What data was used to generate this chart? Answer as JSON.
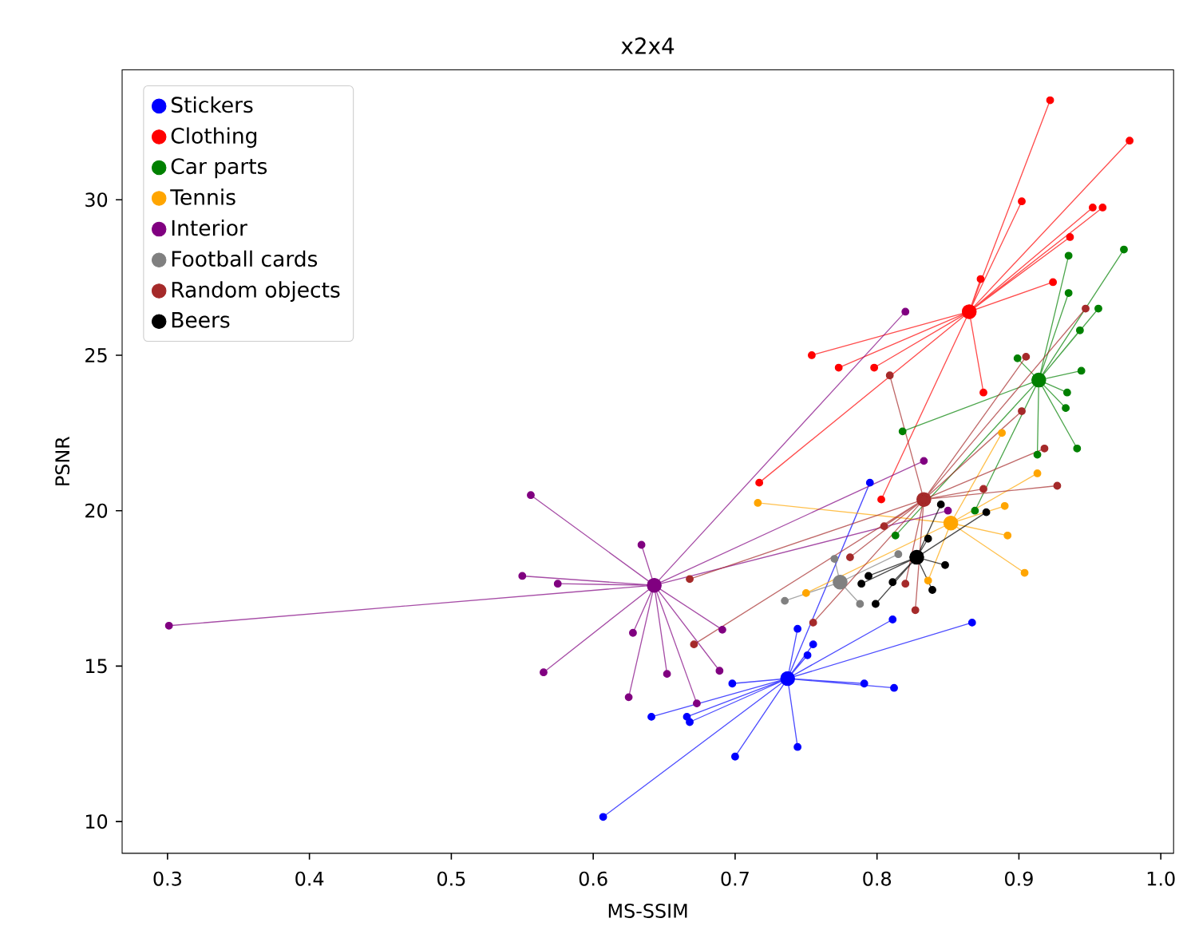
{
  "chart_data": {
    "type": "scatter",
    "title": "x2x4",
    "xlabel": "MS-SSIM",
    "ylabel": "PSNR",
    "xlim": [
      0.268,
      1.009
    ],
    "ylim": [
      8.98,
      34.18
    ],
    "xticks": [
      0.3,
      0.4,
      0.5,
      0.6,
      0.7,
      0.8,
      0.9,
      {
        "value": 1.0,
        "label": "1.0"
      }
    ],
    "yticks": [
      10,
      15,
      20,
      25,
      30
    ],
    "legend": "top left",
    "marker": "circle",
    "series": [
      {
        "name": "Stickers",
        "color": "#0000ff",
        "x": [
          0.737
        ],
        "values": [
          14.6
        ]
      },
      {
        "type": "line",
        "color": "#0000ff",
        "x": [
          0.737,
          0.607,
          0.737,
          0.7,
          0.737,
          0.744,
          0.737,
          0.641,
          0.737,
          0.666,
          0.737,
          0.668,
          0.737,
          0.698,
          0.737,
          0.791,
          0.737,
          0.812,
          0.737,
          0.744,
          0.737,
          0.755,
          0.737,
          0.751,
          0.737,
          0.811,
          0.737,
          0.867,
          0.737,
          0.795
        ],
        "values": [
          14.6,
          10.15,
          14.6,
          12.09,
          14.6,
          12.4,
          14.6,
          13.37,
          14.6,
          13.37,
          14.6,
          13.2,
          14.6,
          14.44,
          14.6,
          14.44,
          14.6,
          14.3,
          14.6,
          16.2,
          14.6,
          15.7,
          14.6,
          15.35,
          14.6,
          16.5,
          14.6,
          16.4,
          14.6,
          20.9
        ]
      },
      {
        "name": "Clothing",
        "color": "#ff0000",
        "x": [
          0.865
        ],
        "values": [
          26.4
        ]
      },
      {
        "type": "line",
        "color": "#ff0000",
        "x": [
          0.865,
          0.922,
          0.865,
          0.978,
          0.865,
          0.902,
          0.865,
          0.952,
          0.865,
          0.959,
          0.865,
          0.936,
          0.865,
          0.924,
          0.865,
          0.873,
          0.865,
          0.798,
          0.865,
          0.875,
          0.865,
          0.754,
          0.865,
          0.773,
          0.865,
          0.717,
          0.865,
          0.803
        ],
        "values": [
          26.4,
          33.2,
          26.4,
          31.9,
          26.4,
          29.95,
          26.4,
          29.75,
          26.4,
          29.75,
          26.4,
          28.8,
          26.4,
          27.35,
          26.4,
          27.45,
          26.4,
          24.6,
          26.4,
          23.8,
          26.4,
          25.0,
          26.4,
          24.6,
          26.4,
          20.9,
          26.4,
          20.36
        ]
      },
      {
        "name": "Car parts",
        "color": "#008000",
        "x": [
          0.914
        ],
        "values": [
          24.2
        ]
      },
      {
        "type": "line",
        "color": "#008000",
        "x": [
          0.914,
          0.935,
          0.914,
          0.974,
          0.914,
          0.935,
          0.914,
          0.956,
          0.914,
          0.943,
          0.914,
          0.899,
          0.914,
          0.944,
          0.914,
          0.934,
          0.914,
          0.933,
          0.914,
          0.941,
          0.914,
          0.913,
          0.914,
          0.818,
          0.914,
          0.813,
          0.914,
          0.869
        ],
        "values": [
          24.2,
          28.2,
          24.2,
          28.4,
          24.2,
          27.0,
          24.2,
          26.5,
          24.2,
          25.8,
          24.2,
          24.9,
          24.2,
          24.5,
          24.2,
          23.8,
          24.2,
          23.3,
          24.2,
          22.0,
          24.2,
          21.8,
          24.2,
          22.55,
          24.2,
          19.2,
          24.2,
          20.0
        ]
      },
      {
        "name": "Tennis",
        "color": "#ffa500",
        "x": [
          0.852
        ],
        "values": [
          19.6
        ]
      },
      {
        "type": "line",
        "color": "#ffa500",
        "x": [
          0.852,
          0.888,
          0.852,
          0.913,
          0.852,
          0.89,
          0.852,
          0.892,
          0.852,
          0.904,
          0.852,
          0.836,
          0.852,
          0.716,
          0.852,
          0.75
        ],
        "values": [
          19.6,
          22.5,
          19.6,
          21.2,
          19.6,
          20.15,
          19.6,
          19.2,
          19.6,
          18.0,
          19.6,
          17.75,
          19.6,
          20.25,
          19.6,
          17.35
        ]
      },
      {
        "name": "Interior",
        "color": "#800080",
        "x": [
          0.643
        ],
        "values": [
          17.6
        ]
      },
      {
        "type": "line",
        "color": "#800080",
        "x": [
          0.643,
          0.556,
          0.643,
          0.634,
          0.643,
          0.55,
          0.643,
          0.575,
          0.643,
          0.628,
          0.643,
          0.691,
          0.643,
          0.565,
          0.643,
          0.652,
          0.643,
          0.689,
          0.643,
          0.625,
          0.643,
          0.673,
          0.643,
          0.301,
          0.643,
          0.82,
          0.643,
          0.833,
          0.643,
          0.85
        ],
        "values": [
          17.6,
          20.5,
          17.6,
          18.9,
          17.6,
          17.9,
          17.6,
          17.65,
          17.6,
          16.07,
          17.6,
          16.17,
          17.6,
          14.8,
          17.6,
          14.75,
          17.6,
          14.85,
          17.6,
          14.0,
          17.6,
          13.8,
          17.6,
          16.3,
          17.6,
          26.4,
          17.6,
          21.6,
          17.6,
          20.0
        ]
      },
      {
        "name": "Football cards",
        "color": "#808080",
        "x": [
          0.774
        ],
        "values": [
          17.7
        ]
      },
      {
        "type": "line",
        "color": "#808080",
        "x": [
          0.774,
          0.735,
          0.774,
          0.788,
          0.774,
          0.77,
          0.774,
          0.815
        ],
        "values": [
          17.7,
          17.1,
          17.7,
          17.0,
          17.7,
          18.45,
          17.7,
          18.6
        ]
      },
      {
        "name": "Random objects",
        "color": "#a52a2a",
        "x": [
          0.833
        ],
        "values": [
          20.36
        ]
      },
      {
        "type": "line",
        "color": "#a52a2a",
        "x": [
          0.833,
          0.902,
          0.833,
          0.918,
          0.833,
          0.927,
          0.833,
          0.875,
          0.833,
          0.805,
          0.833,
          0.82,
          0.833,
          0.827,
          0.833,
          0.947,
          0.833,
          0.905,
          0.833,
          0.809,
          0.833,
          0.668,
          0.833,
          0.671,
          0.833,
          0.781,
          0.833,
          0.755
        ],
        "values": [
          20.36,
          23.2,
          20.36,
          22.0,
          20.36,
          20.8,
          20.36,
          20.7,
          20.36,
          19.5,
          20.36,
          17.65,
          20.36,
          16.8,
          20.36,
          26.5,
          20.36,
          24.95,
          20.36,
          24.35,
          20.36,
          17.8,
          20.36,
          15.7,
          20.36,
          18.5,
          20.36,
          16.4
        ]
      },
      {
        "name": "Beers",
        "color": "#000000",
        "x": [
          0.828
        ],
        "values": [
          18.5
        ]
      },
      {
        "type": "line",
        "color": "#000000",
        "x": [
          0.828,
          0.845,
          0.828,
          0.877,
          0.828,
          0.836,
          0.828,
          0.848,
          0.828,
          0.839,
          0.828,
          0.811,
          0.828,
          0.794,
          0.828,
          0.789,
          0.828,
          0.799
        ],
        "values": [
          18.5,
          20.2,
          18.5,
          19.95,
          18.5,
          19.1,
          18.5,
          18.25,
          18.5,
          17.45,
          18.5,
          17.7,
          18.5,
          17.9,
          18.5,
          17.65,
          18.5,
          17.0
        ]
      }
    ]
  }
}
